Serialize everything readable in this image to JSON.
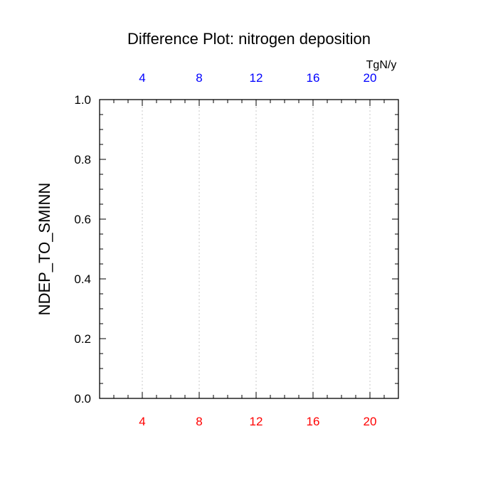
{
  "chart_data": {
    "type": "line",
    "title": "Difference Plot: nitrogen deposition",
    "ylabel": "NDEP_TO_SMINN",
    "top_axis_unit": "TgN/y",
    "xlim": [
      1,
      22
    ],
    "ylim": [
      0.0,
      1.0
    ],
    "x_major_ticks": [
      4,
      8,
      12,
      16,
      20
    ],
    "x_tick_labels": [
      "4",
      "8",
      "12",
      "16",
      "20"
    ],
    "x_minor_step": 1,
    "y_major_ticks": [
      0.0,
      0.2,
      0.4,
      0.6,
      0.8,
      1.0
    ],
    "y_tick_labels": [
      "0.0",
      "0.2",
      "0.4",
      "0.6",
      "0.8",
      "1.0"
    ],
    "y_minor_step": 0.05,
    "vertical_grid": "dotted at major x ticks",
    "series": [],
    "colors": {
      "bottom_axis_labels": "#ff0000",
      "top_axis_labels": "#0000ff",
      "frame": "#000000",
      "grid": "#c8c8c8"
    }
  }
}
